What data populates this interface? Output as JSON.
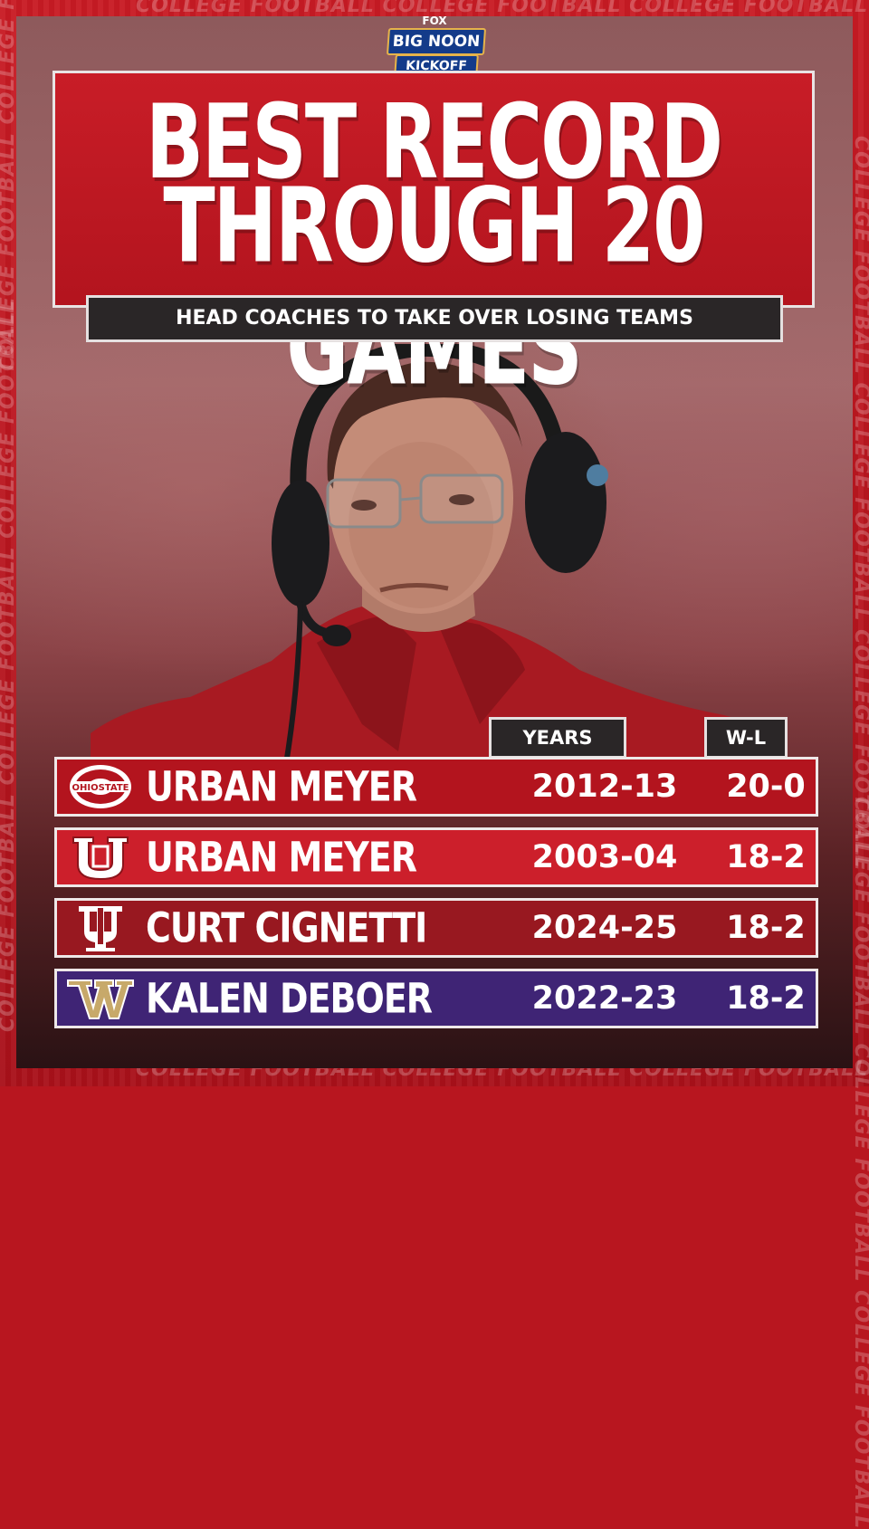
{
  "brand": {
    "network": "FOX",
    "show_line1": "BIG NOON",
    "show_line2": "KICKOFF",
    "border_text": "COLLEGE FOOTBALL COLLEGE FOOTBALL COLLEGE FOOTBALL"
  },
  "title": {
    "line1": "BEST RECORD",
    "line2": "THROUGH 20 GAMES"
  },
  "subtitle": "HEAD COACHES TO TAKE OVER LOSING TEAMS",
  "table": {
    "col_years": "YEARS",
    "col_wl": "W-L",
    "rows": [
      {
        "team_icon": "ohio-state-logo",
        "name": "URBAN MEYER",
        "years": "2012-13",
        "wl": "20-0",
        "color": "#b3141e"
      },
      {
        "team_icon": "utah-logo",
        "name": "URBAN MEYER",
        "years": "2003-04",
        "wl": "18-2",
        "color": "#cc1f2b"
      },
      {
        "team_icon": "indiana-logo",
        "name": "CURT CIGNETTI",
        "years": "2024-25",
        "wl": "18-2",
        "color": "#981820"
      },
      {
        "team_icon": "washington-logo",
        "name": "KALEN DEBOER",
        "years": "2022-23",
        "wl": "18-2",
        "color": "#3f2475"
      }
    ]
  }
}
